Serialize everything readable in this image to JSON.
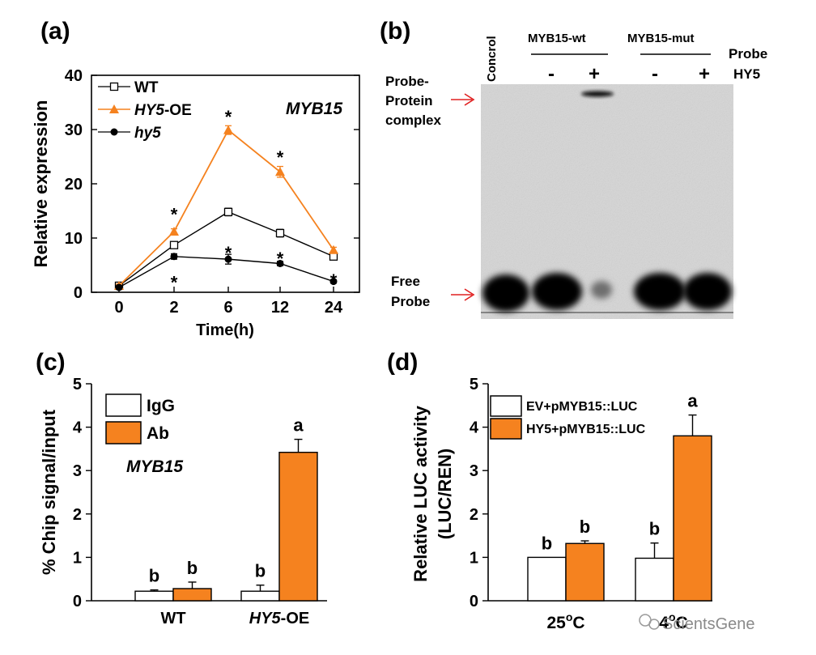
{
  "colors": {
    "orange": "#f5821f",
    "black": "#000000",
    "white": "#ffffff",
    "arrow_red": "#e02020",
    "gel_bg": "#d6d6d6",
    "band": "#111111"
  },
  "watermark": "ScientsGene",
  "chart_data": [
    {
      "panel": "(a)",
      "type": "line",
      "title": "MYB15",
      "xlabel": "Time(h)",
      "ylabel": "Relative expression",
      "categories": [
        "0",
        "2",
        "6",
        "12",
        "24"
      ],
      "yticks": [
        "0",
        "10",
        "20",
        "30",
        "40"
      ],
      "ylim": [
        0,
        40
      ],
      "series": [
        {
          "name": "WT",
          "values": [
            1.2,
            8.7,
            14.8,
            10.9,
            6.6
          ],
          "errors": [
            0.3,
            0.6,
            0.7,
            0.7,
            0.5
          ],
          "marker": "square-open",
          "color": "#000000"
        },
        {
          "name": "HY5-OE",
          "legend_italic": "HY5",
          "legend_rest": "-OE",
          "values": [
            1.2,
            11.2,
            29.9,
            22.2,
            7.8
          ],
          "errors": [
            0.3,
            0.5,
            0.8,
            1.0,
            0.5
          ],
          "marker": "triangle",
          "color": "#f5821f"
        },
        {
          "name": "hy5",
          "values": [
            0.9,
            6.6,
            6.1,
            5.3,
            2.0
          ],
          "errors": [
            0.3,
            0.5,
            0.9,
            0.4,
            0.3
          ],
          "marker": "circle",
          "color": "#000000"
        }
      ],
      "annotations": [
        {
          "text": "*",
          "x": "2",
          "y": 15.0
        },
        {
          "text": "*",
          "x": "2",
          "y": 2.5
        },
        {
          "text": "*",
          "x": "6",
          "y": 33.0
        },
        {
          "text": "*",
          "x": "6",
          "y": 7.9
        },
        {
          "text": "*",
          "x": "12",
          "y": 25.5
        },
        {
          "text": "*",
          "x": "12",
          "y": 6.9
        },
        {
          "text": "*",
          "x": "24",
          "y": 2.8
        }
      ]
    },
    {
      "panel": "(b)",
      "type": "gel",
      "lane_labels": [
        "Concrol",
        "MYB15-wt",
        "MYB15-mut"
      ],
      "probe_label": "Probe",
      "hy5_label": "HY5",
      "signs": [
        "-",
        "+",
        "-",
        "+"
      ],
      "annotation_complex": [
        "Probe-",
        "Protein",
        "complex"
      ],
      "annotation_free": [
        "Free",
        "Probe"
      ]
    },
    {
      "panel": "(c)",
      "type": "bar",
      "title": "MYB15",
      "ylabel": "% Chip signal/input",
      "categories": [
        "WT",
        "HY5-OE"
      ],
      "category_italic": [
        false,
        true
      ],
      "ylim": [
        0,
        5
      ],
      "yticks": [
        "0",
        "1",
        "2",
        "3",
        "4",
        "5"
      ],
      "series": [
        {
          "name": "IgG",
          "values": [
            0.22,
            0.22
          ],
          "errors": [
            0.03,
            0.14
          ],
          "color": "#ffffff"
        },
        {
          "name": "Ab",
          "values": [
            0.28,
            3.42
          ],
          "errors": [
            0.15,
            0.3
          ],
          "color": "#f5821f"
        }
      ],
      "letters": [
        [
          "b",
          "b"
        ],
        [
          "b",
          "a"
        ]
      ]
    },
    {
      "panel": "(d)",
      "type": "bar",
      "ylabel_line1": "Relative LUC activity",
      "ylabel_line2": "(LUC/REN)",
      "categories": [
        "25°C",
        "4°C"
      ],
      "ylim": [
        0,
        5
      ],
      "yticks": [
        "0",
        "1",
        "2",
        "3",
        "4",
        "5"
      ],
      "series": [
        {
          "name": "EV+pMYB15::LUC",
          "values": [
            1.0,
            0.98
          ],
          "errors": [
            0.0,
            0.35
          ],
          "color": "#ffffff"
        },
        {
          "name": "HY5+pMYB15::LUC",
          "values": [
            1.32,
            3.8
          ],
          "errors": [
            0.06,
            0.48
          ],
          "color": "#f5821f"
        }
      ],
      "letters": [
        [
          "b",
          "b"
        ],
        [
          "b",
          "a"
        ]
      ]
    }
  ]
}
